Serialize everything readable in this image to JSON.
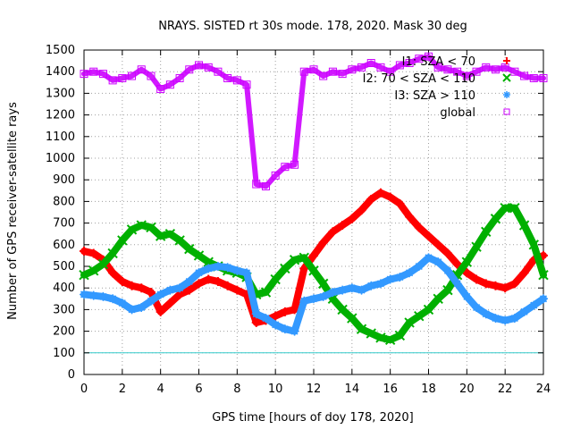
{
  "chart_data": {
    "type": "scatter",
    "title": "NRAYS. SISTED rt 30s mode. 178, 2020. Mask 30 deg",
    "xlabel": "GPS time [hours of doy 178, 2020]",
    "ylabel": "Number of GPS receiver-satellite rays",
    "xlim": [
      0,
      24
    ],
    "ylim": [
      0,
      1500
    ],
    "x_ticks": [
      0,
      2,
      4,
      6,
      8,
      10,
      12,
      14,
      16,
      18,
      20,
      22,
      24
    ],
    "y_ticks": [
      0,
      100,
      200,
      300,
      400,
      500,
      600,
      700,
      800,
      900,
      1000,
      1100,
      1200,
      1300,
      1400,
      1500
    ],
    "grid": true,
    "reference_line": {
      "y": 100,
      "color": "#33cccc"
    },
    "legend_position": "top-right",
    "series": [
      {
        "name": "I1: SZA < 70",
        "marker": "+",
        "color": "#ff0000",
        "x": [
          0,
          0.5,
          1,
          1.5,
          2,
          2.5,
          3,
          3.5,
          4,
          4.5,
          5,
          5.5,
          6,
          6.5,
          7,
          7.5,
          8,
          8.5,
          9,
          9.5,
          10,
          10.5,
          11,
          11.5,
          12,
          12.5,
          13,
          13.5,
          14,
          14.5,
          15,
          15.5,
          16,
          16.5,
          17,
          17.5,
          18,
          18.5,
          19,
          19.5,
          20,
          20.5,
          21,
          21.5,
          22,
          22.5,
          23,
          23.5,
          24
        ],
        "y": [
          570,
          560,
          530,
          470,
          430,
          410,
          400,
          380,
          290,
          330,
          370,
          390,
          420,
          440,
          430,
          410,
          390,
          370,
          240,
          250,
          270,
          290,
          300,
          490,
          550,
          610,
          660,
          690,
          720,
          760,
          810,
          840,
          820,
          790,
          730,
          680,
          640,
          600,
          560,
          510,
          470,
          440,
          420,
          410,
          400,
          420,
          470,
          530,
          550
        ]
      },
      {
        "name": "I2: 70 < SZA < 110",
        "marker": "x",
        "color": "#00b000",
        "x": [
          0,
          0.5,
          1,
          1.5,
          2,
          2.5,
          3,
          3.5,
          4,
          4.5,
          5,
          5.5,
          6,
          6.5,
          7,
          7.5,
          8,
          8.5,
          9,
          9.5,
          10,
          10.5,
          11,
          11.5,
          12,
          12.5,
          13,
          13.5,
          14,
          14.5,
          15,
          15.5,
          16,
          16.5,
          17,
          17.5,
          18,
          18.5,
          19,
          19.5,
          20,
          20.5,
          21,
          21.5,
          22,
          22.5,
          23,
          23.5,
          24
        ],
        "y": [
          460,
          480,
          510,
          560,
          620,
          670,
          690,
          680,
          640,
          650,
          620,
          580,
          550,
          520,
          500,
          480,
          470,
          450,
          370,
          380,
          440,
          490,
          530,
          540,
          480,
          420,
          350,
          300,
          260,
          210,
          190,
          170,
          160,
          180,
          240,
          270,
          300,
          350,
          390,
          460,
          520,
          590,
          660,
          720,
          770,
          770,
          690,
          600,
          460
        ]
      },
      {
        "name": "I3: SZA > 110",
        "marker": "*",
        "color": "#3399ff",
        "x": [
          0,
          0.5,
          1,
          1.5,
          2,
          2.5,
          3,
          3.5,
          4,
          4.5,
          5,
          5.5,
          6,
          6.5,
          7,
          7.5,
          8,
          8.5,
          9,
          9.5,
          10,
          10.5,
          11,
          11.5,
          12,
          12.5,
          13,
          13.5,
          14,
          14.5,
          15,
          15.5,
          16,
          16.5,
          17,
          17.5,
          18,
          18.5,
          19,
          19.5,
          20,
          20.5,
          21,
          21.5,
          22,
          22.5,
          23,
          23.5,
          24
        ],
        "y": [
          370,
          365,
          360,
          350,
          330,
          300,
          310,
          340,
          370,
          390,
          400,
          430,
          470,
          490,
          500,
          495,
          480,
          470,
          280,
          260,
          230,
          210,
          200,
          340,
          350,
          360,
          380,
          390,
          400,
          390,
          410,
          420,
          440,
          450,
          470,
          500,
          540,
          520,
          480,
          420,
          360,
          310,
          280,
          260,
          250,
          260,
          290,
          320,
          350
        ]
      },
      {
        "name": "global",
        "marker": "square",
        "color": "#cc00ff",
        "x": [
          0,
          0.5,
          1,
          1.5,
          2,
          2.5,
          3,
          3.5,
          4,
          4.5,
          5,
          5.5,
          6,
          6.5,
          7,
          7.5,
          8,
          8.5,
          9,
          9.5,
          10,
          10.5,
          11,
          11.5,
          12,
          12.5,
          13,
          13.5,
          14,
          14.5,
          15,
          15.5,
          16,
          16.5,
          17,
          17.5,
          18,
          18.5,
          19,
          19.5,
          20,
          20.5,
          21,
          21.5,
          22,
          22.5,
          23,
          23.5,
          24
        ],
        "y": [
          1390,
          1400,
          1390,
          1360,
          1370,
          1380,
          1410,
          1380,
          1320,
          1340,
          1370,
          1410,
          1430,
          1420,
          1400,
          1370,
          1360,
          1340,
          880,
          870,
          920,
          960,
          970,
          1400,
          1410,
          1380,
          1400,
          1390,
          1410,
          1420,
          1440,
          1420,
          1400,
          1430,
          1440,
          1460,
          1470,
          1420,
          1410,
          1400,
          1380,
          1400,
          1420,
          1410,
          1420,
          1400,
          1380,
          1370,
          1370
        ]
      }
    ]
  }
}
